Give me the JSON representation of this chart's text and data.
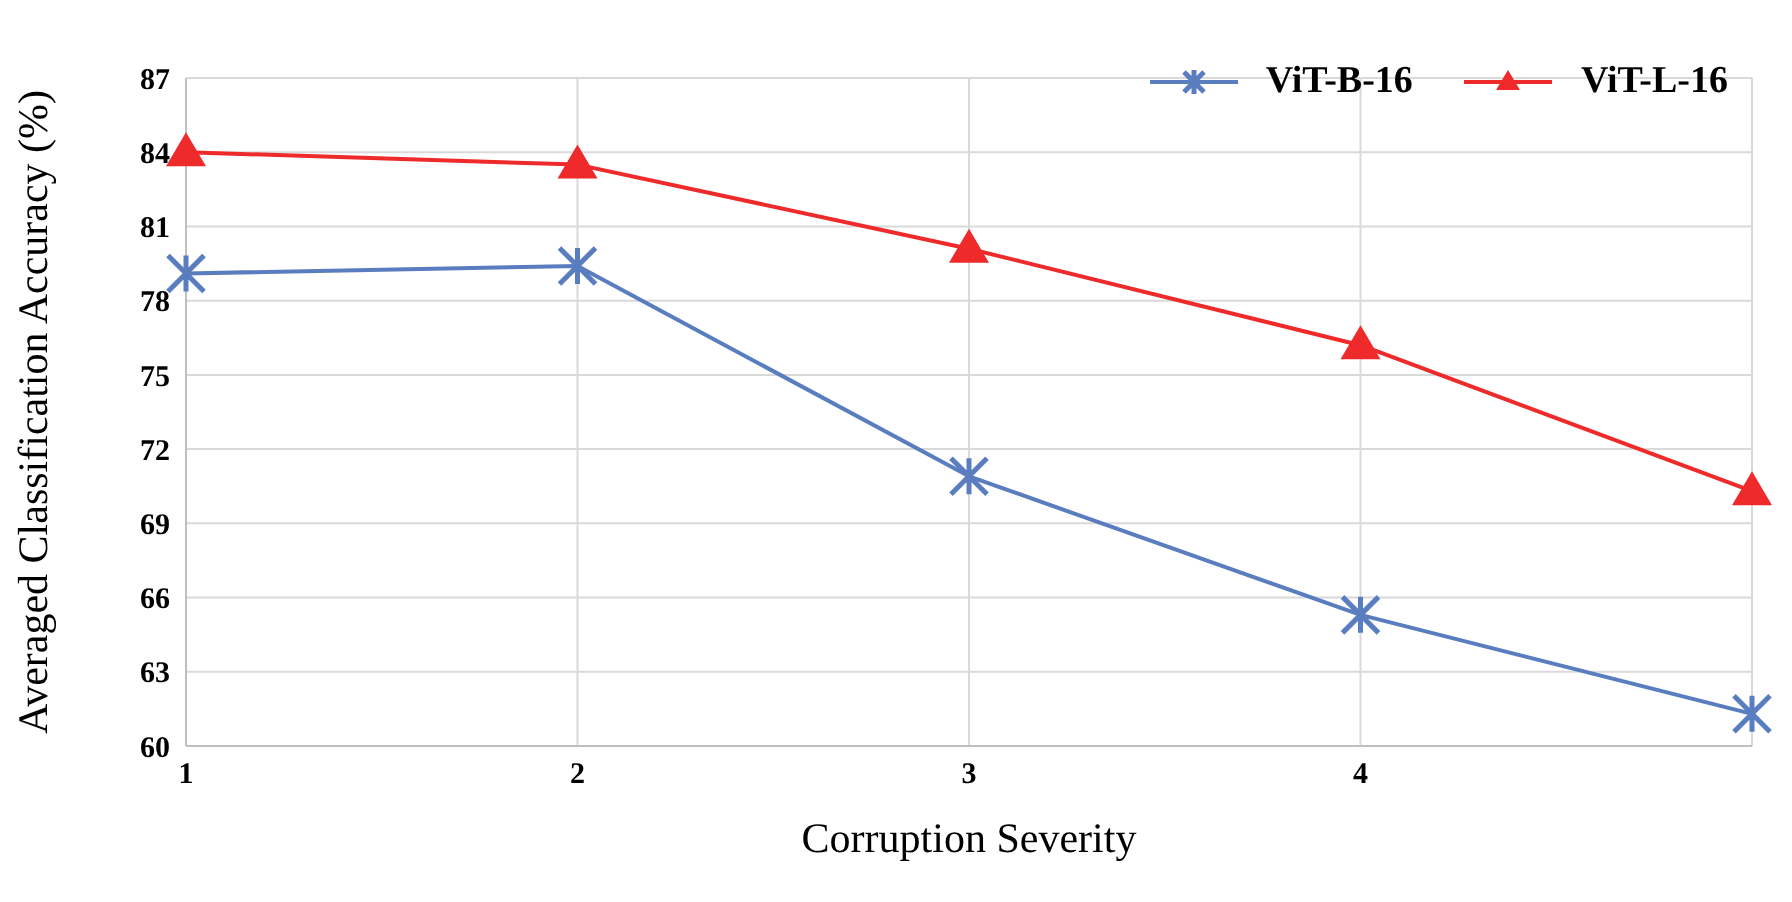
{
  "chart_data": {
    "type": "line",
    "xlabel": "Corruption Severity",
    "ylabel": "Averaged Classification Accuracy (%)",
    "categories": [
      "1",
      "2",
      "3",
      "4",
      null
    ],
    "series": [
      {
        "name": "ViT-B-16",
        "color": "#5a7dc0",
        "marker": "cross",
        "values": [
          79.1,
          79.4,
          70.9,
          65.3,
          61.3
        ]
      },
      {
        "name": "ViT-L-16",
        "color": "#ee2a2a",
        "marker": "triangle",
        "values": [
          84.0,
          83.5,
          80.1,
          76.2,
          70.3
        ]
      }
    ],
    "ylim": [
      60,
      87
    ],
    "yticks": [
      60,
      63,
      66,
      69,
      72,
      75,
      78,
      81,
      84,
      87
    ],
    "grid": true,
    "legend": "top right"
  }
}
